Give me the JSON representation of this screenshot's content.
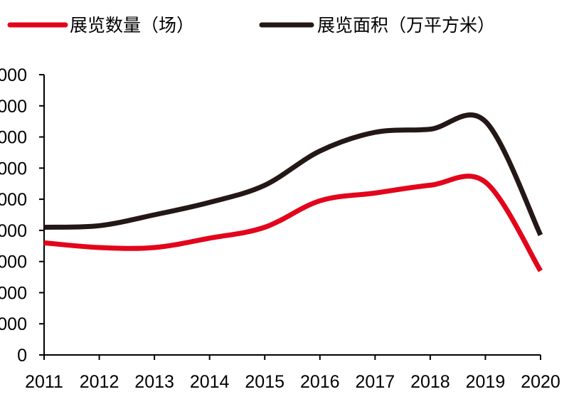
{
  "chart_data": {
    "type": "line",
    "title": "",
    "xlabel": "",
    "ylabel": "",
    "categories": [
      "2011",
      "2012",
      "2013",
      "2014",
      "2015",
      "2016",
      "2017",
      "2018",
      "2019",
      "2020"
    ],
    "y_tick_labels": [
      "000",
      "000",
      "000",
      "000",
      "000",
      "000",
      "000",
      "000",
      "000",
      "0"
    ],
    "ylim": [
      0,
      9
    ],
    "grid": false,
    "legend_position": "top",
    "series": [
      {
        "name": "展览数量（场）",
        "color": "#e3051b",
        "values": [
          3.6,
          3.45,
          3.45,
          3.75,
          4.1,
          4.95,
          5.2,
          5.45,
          5.55,
          2.7
        ]
      },
      {
        "name": "展览面积（万平方米）",
        "color": "#231815",
        "values": [
          4.1,
          4.15,
          4.5,
          4.9,
          5.45,
          6.55,
          7.15,
          7.25,
          7.5,
          3.85
        ]
      }
    ]
  }
}
